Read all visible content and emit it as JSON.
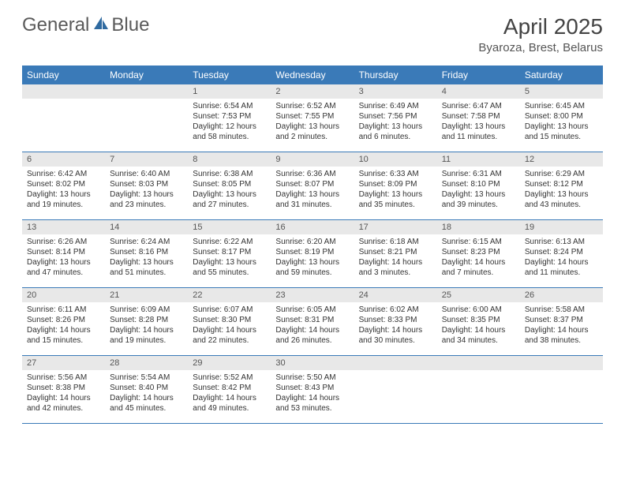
{
  "logo": {
    "part1": "General",
    "part2": "Blue"
  },
  "title": "April 2025",
  "location": "Byaroza, Brest, Belarus",
  "day_header_bg": "#3a7ab8",
  "daynum_bg": "#e8e8e8",
  "border_color": "#3a7ab8",
  "days_of_week": [
    "Sunday",
    "Monday",
    "Tuesday",
    "Wednesday",
    "Thursday",
    "Friday",
    "Saturday"
  ],
  "weeks": [
    [
      null,
      null,
      {
        "n": "1",
        "sunrise": "Sunrise: 6:54 AM",
        "sunset": "Sunset: 7:53 PM",
        "daylight": "Daylight: 12 hours and 58 minutes."
      },
      {
        "n": "2",
        "sunrise": "Sunrise: 6:52 AM",
        "sunset": "Sunset: 7:55 PM",
        "daylight": "Daylight: 13 hours and 2 minutes."
      },
      {
        "n": "3",
        "sunrise": "Sunrise: 6:49 AM",
        "sunset": "Sunset: 7:56 PM",
        "daylight": "Daylight: 13 hours and 6 minutes."
      },
      {
        "n": "4",
        "sunrise": "Sunrise: 6:47 AM",
        "sunset": "Sunset: 7:58 PM",
        "daylight": "Daylight: 13 hours and 11 minutes."
      },
      {
        "n": "5",
        "sunrise": "Sunrise: 6:45 AM",
        "sunset": "Sunset: 8:00 PM",
        "daylight": "Daylight: 13 hours and 15 minutes."
      }
    ],
    [
      {
        "n": "6",
        "sunrise": "Sunrise: 6:42 AM",
        "sunset": "Sunset: 8:02 PM",
        "daylight": "Daylight: 13 hours and 19 minutes."
      },
      {
        "n": "7",
        "sunrise": "Sunrise: 6:40 AM",
        "sunset": "Sunset: 8:03 PM",
        "daylight": "Daylight: 13 hours and 23 minutes."
      },
      {
        "n": "8",
        "sunrise": "Sunrise: 6:38 AM",
        "sunset": "Sunset: 8:05 PM",
        "daylight": "Daylight: 13 hours and 27 minutes."
      },
      {
        "n": "9",
        "sunrise": "Sunrise: 6:36 AM",
        "sunset": "Sunset: 8:07 PM",
        "daylight": "Daylight: 13 hours and 31 minutes."
      },
      {
        "n": "10",
        "sunrise": "Sunrise: 6:33 AM",
        "sunset": "Sunset: 8:09 PM",
        "daylight": "Daylight: 13 hours and 35 minutes."
      },
      {
        "n": "11",
        "sunrise": "Sunrise: 6:31 AM",
        "sunset": "Sunset: 8:10 PM",
        "daylight": "Daylight: 13 hours and 39 minutes."
      },
      {
        "n": "12",
        "sunrise": "Sunrise: 6:29 AM",
        "sunset": "Sunset: 8:12 PM",
        "daylight": "Daylight: 13 hours and 43 minutes."
      }
    ],
    [
      {
        "n": "13",
        "sunrise": "Sunrise: 6:26 AM",
        "sunset": "Sunset: 8:14 PM",
        "daylight": "Daylight: 13 hours and 47 minutes."
      },
      {
        "n": "14",
        "sunrise": "Sunrise: 6:24 AM",
        "sunset": "Sunset: 8:16 PM",
        "daylight": "Daylight: 13 hours and 51 minutes."
      },
      {
        "n": "15",
        "sunrise": "Sunrise: 6:22 AM",
        "sunset": "Sunset: 8:17 PM",
        "daylight": "Daylight: 13 hours and 55 minutes."
      },
      {
        "n": "16",
        "sunrise": "Sunrise: 6:20 AM",
        "sunset": "Sunset: 8:19 PM",
        "daylight": "Daylight: 13 hours and 59 minutes."
      },
      {
        "n": "17",
        "sunrise": "Sunrise: 6:18 AM",
        "sunset": "Sunset: 8:21 PM",
        "daylight": "Daylight: 14 hours and 3 minutes."
      },
      {
        "n": "18",
        "sunrise": "Sunrise: 6:15 AM",
        "sunset": "Sunset: 8:23 PM",
        "daylight": "Daylight: 14 hours and 7 minutes."
      },
      {
        "n": "19",
        "sunrise": "Sunrise: 6:13 AM",
        "sunset": "Sunset: 8:24 PM",
        "daylight": "Daylight: 14 hours and 11 minutes."
      }
    ],
    [
      {
        "n": "20",
        "sunrise": "Sunrise: 6:11 AM",
        "sunset": "Sunset: 8:26 PM",
        "daylight": "Daylight: 14 hours and 15 minutes."
      },
      {
        "n": "21",
        "sunrise": "Sunrise: 6:09 AM",
        "sunset": "Sunset: 8:28 PM",
        "daylight": "Daylight: 14 hours and 19 minutes."
      },
      {
        "n": "22",
        "sunrise": "Sunrise: 6:07 AM",
        "sunset": "Sunset: 8:30 PM",
        "daylight": "Daylight: 14 hours and 22 minutes."
      },
      {
        "n": "23",
        "sunrise": "Sunrise: 6:05 AM",
        "sunset": "Sunset: 8:31 PM",
        "daylight": "Daylight: 14 hours and 26 minutes."
      },
      {
        "n": "24",
        "sunrise": "Sunrise: 6:02 AM",
        "sunset": "Sunset: 8:33 PM",
        "daylight": "Daylight: 14 hours and 30 minutes."
      },
      {
        "n": "25",
        "sunrise": "Sunrise: 6:00 AM",
        "sunset": "Sunset: 8:35 PM",
        "daylight": "Daylight: 14 hours and 34 minutes."
      },
      {
        "n": "26",
        "sunrise": "Sunrise: 5:58 AM",
        "sunset": "Sunset: 8:37 PM",
        "daylight": "Daylight: 14 hours and 38 minutes."
      }
    ],
    [
      {
        "n": "27",
        "sunrise": "Sunrise: 5:56 AM",
        "sunset": "Sunset: 8:38 PM",
        "daylight": "Daylight: 14 hours and 42 minutes."
      },
      {
        "n": "28",
        "sunrise": "Sunrise: 5:54 AM",
        "sunset": "Sunset: 8:40 PM",
        "daylight": "Daylight: 14 hours and 45 minutes."
      },
      {
        "n": "29",
        "sunrise": "Sunrise: 5:52 AM",
        "sunset": "Sunset: 8:42 PM",
        "daylight": "Daylight: 14 hours and 49 minutes."
      },
      {
        "n": "30",
        "sunrise": "Sunrise: 5:50 AM",
        "sunset": "Sunset: 8:43 PM",
        "daylight": "Daylight: 14 hours and 53 minutes."
      },
      null,
      null,
      null
    ]
  ]
}
